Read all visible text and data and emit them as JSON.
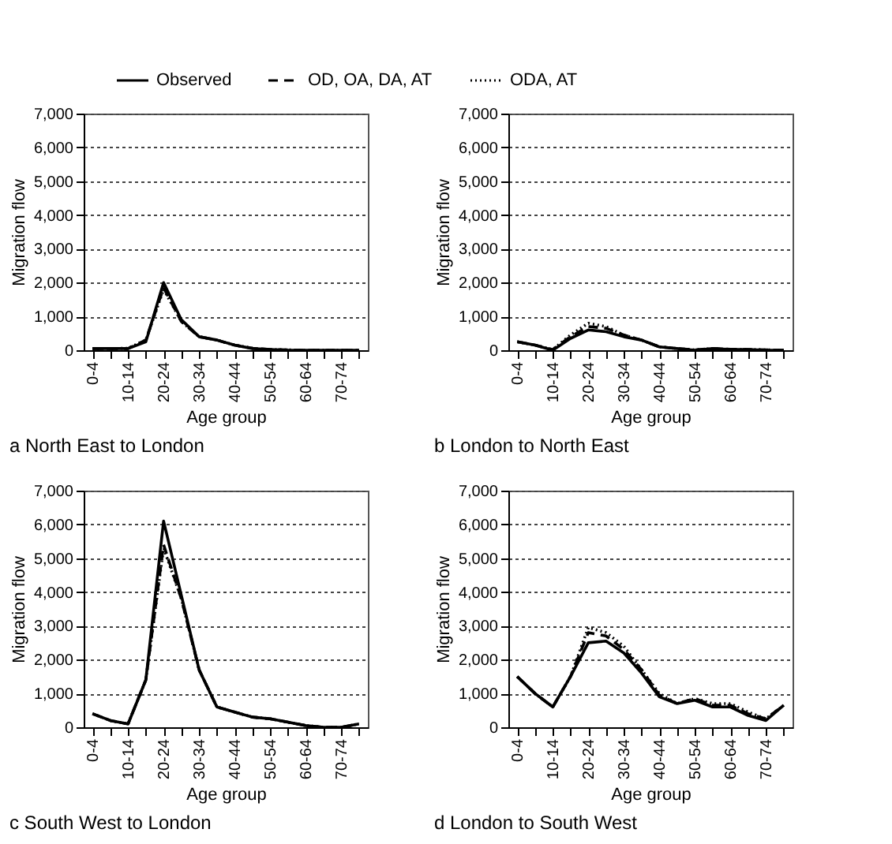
{
  "chart_data": [
    {
      "type": "line",
      "title": "a   North East to London",
      "xlabel": "Age group",
      "ylabel": "Migration flow",
      "categories": [
        "0-4",
        null,
        "10-14",
        null,
        "20-24",
        null,
        "30-34",
        null,
        "40-44",
        null,
        "50-54",
        null,
        "60-64",
        null,
        "70-74",
        null
      ],
      "ylim": [
        0,
        7000
      ],
      "yticks": [
        {
          "value": 0,
          "label": "0"
        },
        {
          "value": 1000,
          "label": "1,000"
        },
        {
          "value": 2000,
          "label": "2,000"
        },
        {
          "value": 3000,
          "label": "3,000"
        },
        {
          "value": 4000,
          "label": "4,000"
        },
        {
          "value": 5000,
          "label": "5,000"
        },
        {
          "value": 6000,
          "label": "6,000"
        },
        {
          "value": 7000,
          "label": "7,000"
        }
      ],
      "grid": "y",
      "legend": "top",
      "marker": "none",
      "series": [
        {
          "name": "Observed",
          "color": "#000000",
          "line_style": "solid",
          "values": [
            50,
            50,
            50,
            250,
            2000,
            900,
            400,
            300,
            150,
            50,
            20,
            0,
            0,
            0,
            0,
            0
          ]
        },
        {
          "name": "OD, OA, DA, AT",
          "color": "#000000",
          "line_style": "dashed",
          "values": [
            50,
            50,
            50,
            300,
            1850,
            850,
            400,
            300,
            150,
            60,
            20,
            10,
            0,
            0,
            0,
            0
          ]
        },
        {
          "name": "ODA, AT",
          "color": "#000000",
          "line_style": "dotted",
          "values": [
            50,
            50,
            60,
            300,
            1800,
            850,
            400,
            300,
            150,
            60,
            20,
            10,
            0,
            0,
            0,
            0
          ]
        }
      ]
    },
    {
      "type": "line",
      "title": "b   London to North East",
      "xlabel": "Age group",
      "ylabel": "Migration flow",
      "categories": [
        "0-4",
        null,
        "10-14",
        null,
        "20-24",
        null,
        "30-34",
        null,
        "40-44",
        null,
        "50-54",
        null,
        "60-64",
        null,
        "70-74",
        null
      ],
      "ylim": [
        0,
        7000
      ],
      "yticks": [
        {
          "value": 0,
          "label": "0"
        },
        {
          "value": 1000,
          "label": "1,000"
        },
        {
          "value": 2000,
          "label": "2,000"
        },
        {
          "value": 3000,
          "label": "3,000"
        },
        {
          "value": 4000,
          "label": "4,000"
        },
        {
          "value": 5000,
          "label": "5,000"
        },
        {
          "value": 6000,
          "label": "6,000"
        },
        {
          "value": 7000,
          "label": "7,000"
        }
      ],
      "grid": "y",
      "marker": "none",
      "series": [
        {
          "name": "Observed",
          "color": "#000000",
          "line_style": "solid",
          "values": [
            250,
            150,
            0,
            350,
            600,
            550,
            400,
            300,
            100,
            50,
            0,
            50,
            20,
            20,
            0,
            0
          ]
        },
        {
          "name": "OD, OA, DA, AT",
          "color": "#000000",
          "line_style": "dashed",
          "values": [
            250,
            150,
            20,
            400,
            700,
            650,
            450,
            300,
            100,
            50,
            10,
            50,
            30,
            20,
            10,
            0
          ]
        },
        {
          "name": "ODA, AT",
          "color": "#000000",
          "line_style": "dotted",
          "values": [
            250,
            150,
            20,
            450,
            800,
            700,
            450,
            300,
            100,
            50,
            10,
            50,
            30,
            20,
            10,
            0
          ]
        }
      ]
    },
    {
      "type": "line",
      "title": "c   South West to London",
      "xlabel": "Age group",
      "ylabel": "Migration flow",
      "categories": [
        "0-4",
        null,
        "10-14",
        null,
        "20-24",
        null,
        "30-34",
        null,
        "40-44",
        null,
        "50-54",
        null,
        "60-64",
        null,
        "70-74",
        null
      ],
      "ylim": [
        0,
        7000
      ],
      "yticks": [
        {
          "value": 0,
          "label": "0"
        },
        {
          "value": 1000,
          "label": "1,000"
        },
        {
          "value": 2000,
          "label": "2,000"
        },
        {
          "value": 3000,
          "label": "3,000"
        },
        {
          "value": 4000,
          "label": "4,000"
        },
        {
          "value": 5000,
          "label": "5,000"
        },
        {
          "value": 6000,
          "label": "6,000"
        },
        {
          "value": 7000,
          "label": "7,000"
        }
      ],
      "grid": "y",
      "marker": "none",
      "series": [
        {
          "name": "Observed",
          "color": "#000000",
          "line_style": "solid",
          "values": [
            400,
            200,
            100,
            1400,
            6100,
            3900,
            1700,
            600,
            450,
            300,
            250,
            150,
            50,
            0,
            0,
            100
          ]
        },
        {
          "name": "OD, OA, DA, AT",
          "color": "#000000",
          "line_style": "dashed",
          "values": [
            400,
            200,
            100,
            1400,
            5400,
            3800,
            1700,
            600,
            450,
            300,
            250,
            150,
            50,
            0,
            0,
            100
          ]
        },
        {
          "name": "ODA, AT",
          "color": "#000000",
          "line_style": "dotted",
          "values": [
            400,
            200,
            100,
            1400,
            5300,
            3800,
            1700,
            600,
            450,
            300,
            250,
            150,
            50,
            0,
            0,
            100
          ]
        }
      ]
    },
    {
      "type": "line",
      "title": "d   London to South West",
      "xlabel": "Age group",
      "ylabel": "Migration flow",
      "categories": [
        "0-4",
        null,
        "10-14",
        null,
        "20-24",
        null,
        "30-34",
        null,
        "40-44",
        null,
        "50-54",
        null,
        "60-64",
        null,
        "70-74",
        null
      ],
      "ylim": [
        0,
        7000
      ],
      "yticks": [
        {
          "value": 0,
          "label": "0"
        },
        {
          "value": 1000,
          "label": "1,000"
        },
        {
          "value": 2000,
          "label": "2,000"
        },
        {
          "value": 3000,
          "label": "3,000"
        },
        {
          "value": 4000,
          "label": "4,000"
        },
        {
          "value": 5000,
          "label": "5,000"
        },
        {
          "value": 6000,
          "label": "6,000"
        },
        {
          "value": 7000,
          "label": "7,000"
        }
      ],
      "grid": "y",
      "marker": "none",
      "series": [
        {
          "name": "Observed",
          "color": "#000000",
          "line_style": "solid",
          "values": [
            1500,
            1000,
            600,
            1500,
            2500,
            2550,
            2200,
            1600,
            900,
            700,
            800,
            600,
            600,
            350,
            200,
            650
          ]
        },
        {
          "name": "OD, OA, DA, AT",
          "color": "#000000",
          "line_style": "dashed",
          "values": [
            1500,
            1000,
            600,
            1500,
            2800,
            2700,
            2300,
            1700,
            950,
            700,
            850,
            650,
            650,
            400,
            250,
            650
          ]
        },
        {
          "name": "ODA, AT",
          "color": "#000000",
          "line_style": "dotted",
          "values": [
            1500,
            1000,
            600,
            1500,
            2950,
            2800,
            2400,
            1700,
            1000,
            700,
            850,
            700,
            700,
            450,
            250,
            650
          ]
        }
      ]
    }
  ]
}
